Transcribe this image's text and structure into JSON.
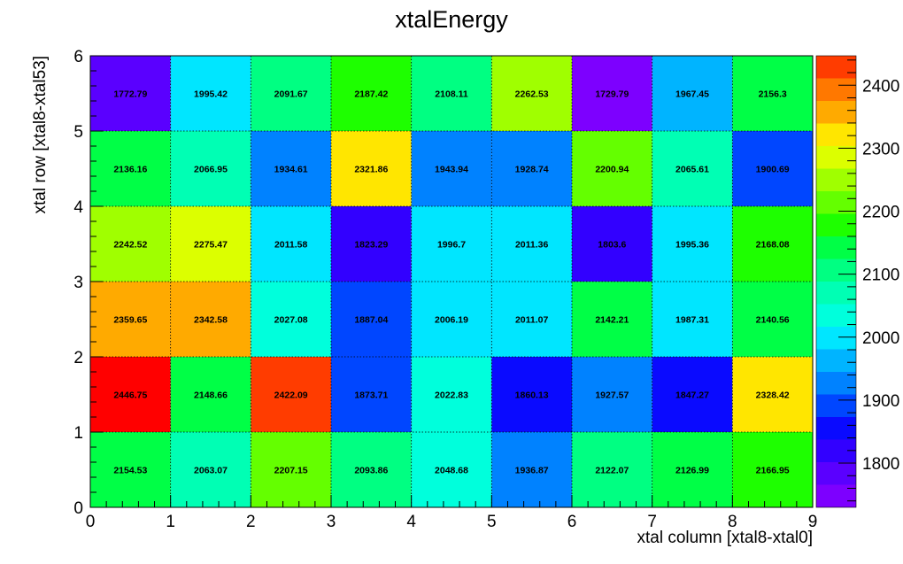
{
  "chart_data": {
    "type": "heatmap",
    "title": "xtalEnergy",
    "xlabel": "xtal column [xtal8-xtal0]",
    "ylabel": "xtal row [xtal8-xtal53]",
    "xlim": [
      0,
      9
    ],
    "ylim": [
      0,
      6
    ],
    "x_ticks": [
      "0",
      "1",
      "2",
      "3",
      "4",
      "5",
      "6",
      "7",
      "8",
      "9"
    ],
    "y_ticks": [
      "0",
      "1",
      "2",
      "3",
      "4",
      "5",
      "6"
    ],
    "grid": true,
    "colorbar": {
      "range": [
        1729.79,
        2446.75
      ],
      "ticks": [
        "1800",
        "1900",
        "2000",
        "2100",
        "2200",
        "2300",
        "2400"
      ],
      "levels": 20,
      "palette": [
        "#7d00ff",
        "#5a00ff",
        "#3200ff",
        "#0a0aff",
        "#0046ff",
        "#0082ff",
        "#00b4ff",
        "#00e6ff",
        "#00ffdc",
        "#00ffb4",
        "#00ff82",
        "#00ff46",
        "#1eff00",
        "#64ff00",
        "#a0ff00",
        "#dcff00",
        "#ffe600",
        "#ffaa00",
        "#ff7800",
        "#ff3c00",
        "#ff0000"
      ]
    },
    "rows": [
      {
        "y": 0,
        "values": [
          "2154.53",
          "2063.07",
          "2207.15",
          "2093.86",
          "2048.68",
          "1936.87",
          "2122.07",
          "2126.99",
          "2166.95"
        ]
      },
      {
        "y": 1,
        "values": [
          "2446.75",
          "2148.66",
          "2422.09",
          "1873.71",
          "2022.83",
          "1860.13",
          "1927.57",
          "1847.27",
          "2328.42"
        ]
      },
      {
        "y": 2,
        "values": [
          "2359.65",
          "2342.58",
          "2027.08",
          "1887.04",
          "2006.19",
          "2011.07",
          "2142.21",
          "1987.31",
          "2140.56"
        ]
      },
      {
        "y": 3,
        "values": [
          "2242.52",
          "2275.47",
          "2011.58",
          "1823.29",
          "1996.7",
          "2011.36",
          "1803.6",
          "1995.36",
          "2168.08"
        ]
      },
      {
        "y": 4,
        "values": [
          "2136.16",
          "2066.95",
          "1934.61",
          "2321.86",
          "1943.94",
          "1928.74",
          "2200.94",
          "2065.61",
          "1900.69"
        ]
      },
      {
        "y": 5,
        "values": [
          "1772.79",
          "1995.42",
          "2091.67",
          "2187.42",
          "2108.11",
          "2262.53",
          "1729.79",
          "1967.45",
          "2156.3"
        ]
      }
    ]
  }
}
